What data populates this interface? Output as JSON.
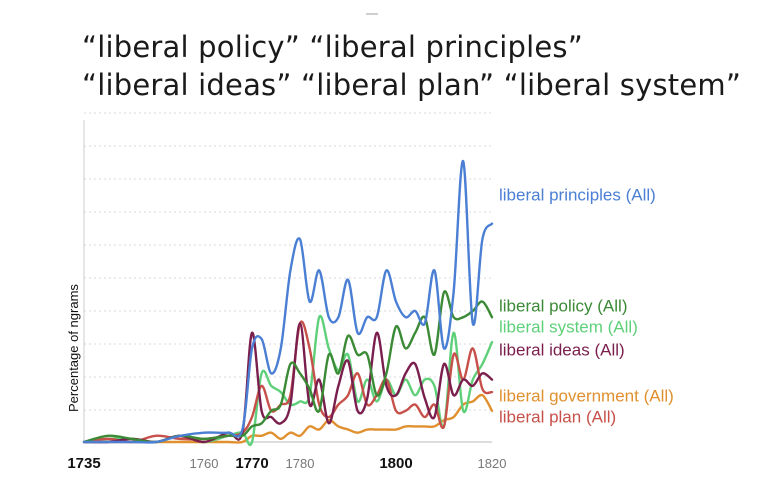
{
  "title": {
    "line1": "“liberal policy”  “liberal principles”",
    "line2": "“liberal ideas” “liberal plan” “liberal system”"
  },
  "chart_data": {
    "type": "line",
    "xlabel": "",
    "ylabel": "Percentage of ngrams",
    "xlim": [
      1735,
      1820
    ],
    "x_ticks": [
      {
        "value": 1735,
        "label": "1735",
        "bold": true
      },
      {
        "value": 1760,
        "label": "1760",
        "bold": false
      },
      {
        "value": 1770,
        "label": "1770",
        "bold": true
      },
      {
        "value": 1780,
        "label": "1780",
        "bold": false
      },
      {
        "value": 1800,
        "label": "1800",
        "bold": true
      },
      {
        "value": 1820,
        "label": "1820",
        "bold": false
      }
    ],
    "ylim": [
      0,
      100
    ],
    "y_units": "relative frequency (scale not printed)",
    "grid": "horizontal dotted",
    "legend": "labels at right end of each line",
    "series": [
      {
        "name": "liberal principles (All)",
        "color": "#4a7fd4",
        "x": [
          1735,
          1740,
          1745,
          1750,
          1755,
          1760,
          1765,
          1768,
          1770,
          1772,
          1774,
          1776,
          1778,
          1780,
          1782,
          1784,
          1786,
          1788,
          1790,
          1792,
          1794,
          1796,
          1798,
          1800,
          1802,
          1804,
          1806,
          1808,
          1810,
          1812,
          1814,
          1816,
          1818,
          1820
        ],
        "y": [
          0,
          0,
          0,
          0,
          2,
          3,
          3,
          4,
          30,
          33,
          22,
          30,
          55,
          65,
          45,
          55,
          40,
          40,
          52,
          35,
          40,
          40,
          55,
          45,
          40,
          42,
          38,
          55,
          30,
          48,
          90,
          38,
          65,
          70
        ]
      },
      {
        "name": "liberal policy (All)",
        "color": "#3b8a36",
        "x": [
          1735,
          1740,
          1745,
          1750,
          1755,
          1760,
          1765,
          1768,
          1770,
          1772,
          1774,
          1776,
          1778,
          1780,
          1782,
          1784,
          1786,
          1788,
          1790,
          1792,
          1794,
          1796,
          1798,
          1800,
          1802,
          1804,
          1806,
          1808,
          1810,
          1812,
          1814,
          1816,
          1818,
          1820
        ],
        "y": [
          0,
          2,
          1,
          0,
          2,
          1,
          2,
          2,
          5,
          6,
          10,
          12,
          25,
          22,
          17,
          10,
          28,
          22,
          34,
          28,
          28,
          15,
          22,
          37,
          30,
          35,
          40,
          28,
          48,
          40,
          40,
          42,
          45,
          40
        ]
      },
      {
        "name": "liberal system (All)",
        "color": "#5fd07a",
        "x": [
          1735,
          1740,
          1745,
          1750,
          1755,
          1760,
          1765,
          1768,
          1770,
          1772,
          1774,
          1776,
          1778,
          1780,
          1782,
          1784,
          1786,
          1788,
          1790,
          1792,
          1794,
          1796,
          1798,
          1800,
          1802,
          1804,
          1806,
          1808,
          1810,
          1812,
          1814,
          1816,
          1818,
          1820
        ],
        "y": [
          0,
          1,
          1,
          0,
          2,
          0,
          2,
          3,
          0,
          22,
          18,
          16,
          12,
          13,
          15,
          40,
          30,
          23,
          28,
          13,
          20,
          13,
          20,
          15,
          20,
          15,
          20,
          18,
          5,
          35,
          10,
          20,
          25,
          32
        ]
      },
      {
        "name": "liberal ideas (All)",
        "color": "#7a1f4d",
        "x": [
          1735,
          1740,
          1745,
          1750,
          1755,
          1760,
          1765,
          1768,
          1770,
          1772,
          1774,
          1776,
          1778,
          1780,
          1782,
          1784,
          1786,
          1788,
          1790,
          1792,
          1794,
          1796,
          1798,
          1800,
          1802,
          1804,
          1806,
          1808,
          1810,
          1812,
          1814,
          1816,
          1818,
          1820
        ],
        "y": [
          0,
          0,
          1,
          0,
          2,
          0,
          3,
          3,
          35,
          10,
          8,
          6,
          12,
          38,
          12,
          20,
          6,
          18,
          26,
          10,
          14,
          35,
          18,
          15,
          22,
          25,
          14,
          8,
          25,
          15,
          20,
          18,
          22,
          20
        ]
      },
      {
        "name": "liberal government (All)",
        "color": "#e0902f",
        "x": [
          1735,
          1740,
          1745,
          1750,
          1755,
          1760,
          1765,
          1768,
          1770,
          1772,
          1774,
          1776,
          1778,
          1780,
          1782,
          1784,
          1786,
          1788,
          1790,
          1792,
          1794,
          1796,
          1798,
          1800,
          1802,
          1804,
          1806,
          1808,
          1810,
          1812,
          1814,
          1816,
          1818,
          1820
        ],
        "y": [
          0,
          0,
          0,
          0,
          0,
          0,
          0,
          0,
          2,
          2,
          3,
          1,
          3,
          2,
          5,
          4,
          7,
          5,
          4,
          3,
          4,
          4,
          4,
          4,
          5,
          5,
          5,
          5,
          7,
          8,
          12,
          13,
          15,
          10
        ]
      },
      {
        "name": "liberal plan (All)",
        "color": "#c7514a",
        "x": [
          1735,
          1740,
          1745,
          1750,
          1755,
          1760,
          1765,
          1768,
          1770,
          1772,
          1774,
          1776,
          1778,
          1780,
          1782,
          1784,
          1786,
          1788,
          1790,
          1792,
          1794,
          1796,
          1798,
          1800,
          1802,
          1804,
          1806,
          1808,
          1810,
          1812,
          1814,
          1816,
          1818,
          1820
        ],
        "y": [
          0,
          1,
          0,
          2,
          1,
          1,
          2,
          3,
          8,
          18,
          10,
          12,
          15,
          38,
          30,
          12,
          8,
          12,
          15,
          22,
          12,
          15,
          20,
          10,
          10,
          12,
          8,
          12,
          5,
          28,
          20,
          30,
          17,
          16
        ]
      }
    ]
  }
}
